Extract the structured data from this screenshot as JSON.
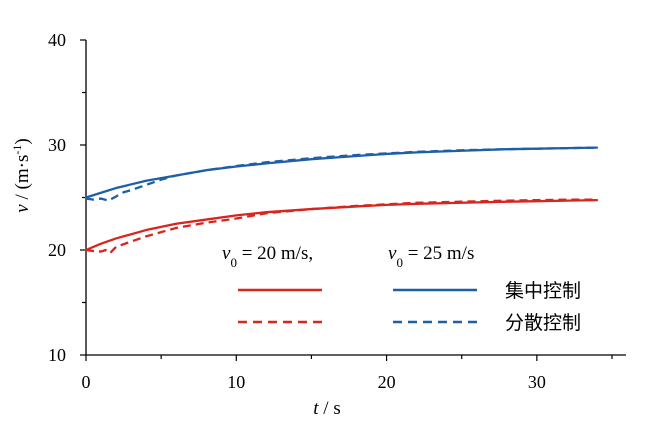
{
  "chart_data": {
    "type": "line",
    "xlim": [
      0,
      35
    ],
    "ylim": [
      10,
      40
    ],
    "x_ticks": [
      0,
      10,
      20,
      30
    ],
    "x_tick_labels": [
      "0",
      "10",
      "20",
      "30"
    ],
    "y_ticks": [
      10,
      20,
      30,
      40
    ],
    "y_tick_labels": [
      "10",
      "20",
      "30",
      "40"
    ],
    "xlabel": {
      "var": "t",
      "rest": " / s"
    },
    "ylabel": {
      "var": "v",
      "rest": " / (m·s",
      "sup": "-1",
      "close": ")"
    },
    "grid": false,
    "legend": {
      "group_labels": [
        {
          "var": "v",
          "sub": "0",
          "rest": " = 20 m/s,"
        },
        {
          "var": "v",
          "sub": "0",
          "rest": " = 25 m/s"
        }
      ],
      "row_labels": [
        "集中控制",
        "分散控制"
      ],
      "placement": "bottom-right"
    },
    "colors": {
      "red": "#d7261e",
      "blue": "#1f5fa8"
    },
    "series": [
      {
        "group": "v0=20",
        "style": "solid",
        "color": "#d7261e",
        "x": [
          0,
          1,
          2,
          4,
          6,
          8,
          10,
          12,
          15,
          18,
          20,
          22,
          25,
          28,
          30,
          32,
          34
        ],
        "y": [
          20.0,
          20.6,
          21.1,
          21.9,
          22.5,
          22.9,
          23.3,
          23.6,
          23.9,
          24.15,
          24.3,
          24.4,
          24.5,
          24.6,
          24.65,
          24.7,
          24.75
        ]
      },
      {
        "group": "v0=20",
        "style": "dashed",
        "color": "#d7261e",
        "x": [
          0,
          0.5,
          1,
          1.3,
          1.6,
          2,
          3,
          4,
          5,
          6,
          8,
          10,
          12,
          15,
          18,
          20,
          22,
          25,
          28,
          30,
          32,
          34
        ],
        "y": [
          20.0,
          19.9,
          19.85,
          20.0,
          19.7,
          20.3,
          20.8,
          21.3,
          21.7,
          22.1,
          22.6,
          23.0,
          23.5,
          23.9,
          24.2,
          24.35,
          24.5,
          24.6,
          24.7,
          24.75,
          24.8,
          24.8
        ]
      },
      {
        "group": "v0=25",
        "style": "solid",
        "color": "#1f5fa8",
        "x": [
          0,
          1,
          2,
          4,
          6,
          8,
          10,
          12,
          15,
          18,
          20,
          22,
          25,
          28,
          30,
          32,
          34
        ],
        "y": [
          25.0,
          25.45,
          25.9,
          26.6,
          27.1,
          27.6,
          27.95,
          28.25,
          28.65,
          28.95,
          29.15,
          29.3,
          29.45,
          29.6,
          29.65,
          29.7,
          29.75
        ]
      },
      {
        "group": "v0=25",
        "style": "dashed",
        "color": "#1f5fa8",
        "x": [
          0,
          0.5,
          1,
          1.5,
          2,
          2.5,
          3,
          4,
          5,
          6,
          8,
          10,
          12,
          15,
          18,
          20,
          22,
          25,
          28,
          30,
          32,
          34
        ],
        "y": [
          24.9,
          24.8,
          24.9,
          24.7,
          25.1,
          25.5,
          25.7,
          26.2,
          26.7,
          27.1,
          27.6,
          28.0,
          28.35,
          28.75,
          29.05,
          29.2,
          29.35,
          29.5,
          29.6,
          29.65,
          29.7,
          29.75
        ]
      }
    ]
  }
}
